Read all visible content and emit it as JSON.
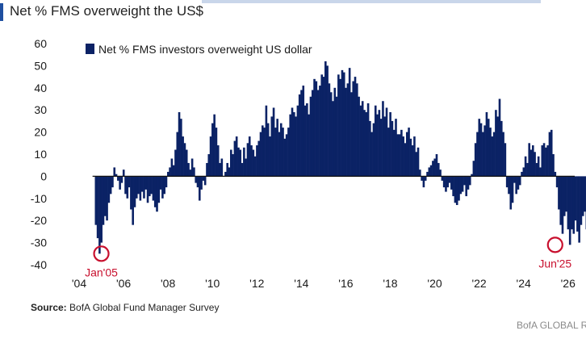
{
  "header": {
    "title": "Net % FMS overweight the US$"
  },
  "chart_data": {
    "type": "bar",
    "title": "Net % FMS overweight the US$",
    "legend": "Net % FMS investors overweight US dollar",
    "legend_position": "top-left",
    "ylim": [
      -40,
      60
    ],
    "y_ticks": [
      60,
      50,
      40,
      30,
      20,
      10,
      0,
      -10,
      -20,
      -30,
      -40
    ],
    "x_ticks": [
      "'04",
      "'06",
      "'08",
      "'10",
      "'12",
      "'14",
      "'16",
      "'18",
      "'20",
      "'22",
      "'24",
      "'26"
    ],
    "x_tick_years": [
      2004,
      2006,
      2008,
      2010,
      2012,
      2014,
      2016,
      2018,
      2020,
      2022,
      2024,
      2026
    ],
    "xlim": [
      2004.0,
      2026.3
    ],
    "bar_color": "#0b2265",
    "annotations": [
      {
        "label": "Jan'05",
        "x": 2005.0,
        "y": -35,
        "color": "#c8102e"
      },
      {
        "label": "Jun'25",
        "x": 2025.42,
        "y": -31,
        "color": "#c8102e"
      }
    ],
    "series": [
      {
        "name": "Net % FMS investors overweight US dollar",
        "start": 2004.75,
        "step_months": 1,
        "values": [
          -22,
          -28,
          -35,
          -30,
          -22,
          -18,
          -20,
          -12,
          -8,
          -5,
          4,
          1,
          -2,
          -6,
          -3,
          3,
          -8,
          -10,
          -5,
          -15,
          -22,
          -14,
          -10,
          -8,
          -11,
          -7,
          -10,
          -6,
          -12,
          -9,
          -8,
          -11,
          -14,
          -16,
          -12,
          -6,
          -10,
          -8,
          -5,
          2,
          4,
          8,
          5,
          12,
          20,
          29,
          26,
          18,
          15,
          12,
          6,
          3,
          8,
          4,
          -3,
          -5,
          -11,
          -6,
          -2,
          -4,
          6,
          10,
          18,
          24,
          28,
          22,
          14,
          6,
          8,
          0,
          2,
          6,
          4,
          12,
          10,
          16,
          18,
          13,
          12,
          6,
          13,
          8,
          15,
          18,
          14,
          12,
          9,
          14,
          16,
          20,
          23,
          22,
          32,
          24,
          18,
          27,
          31,
          22,
          26,
          20,
          24,
          22,
          17,
          19,
          22,
          28,
          31,
          29,
          27,
          32,
          37,
          39,
          41,
          32,
          33,
          28,
          36,
          39,
          44,
          43,
          39,
          41,
          46,
          45,
          52,
          50,
          42,
          38,
          34,
          40,
          36,
          46,
          44,
          48,
          47,
          40,
          42,
          49,
          38,
          43,
          45,
          42,
          36,
          32,
          34,
          30,
          29,
          33,
          25,
          20,
          24,
          32,
          28,
          30,
          26,
          34,
          27,
          31,
          22,
          29,
          25,
          21,
          26,
          19,
          19,
          21,
          18,
          15,
          20,
          22,
          17,
          14,
          18,
          11,
          13,
          3,
          -2,
          -5,
          -2,
          2,
          4,
          5,
          7,
          8,
          10,
          6,
          3,
          -2,
          -5,
          -7,
          -5,
          -3,
          -6,
          -9,
          -12,
          -13,
          -11,
          -8,
          -7,
          -4,
          -9,
          -6,
          -4,
          1,
          7,
          15,
          20,
          26,
          24,
          20,
          23,
          29,
          26,
          22,
          18,
          20,
          30,
          27,
          35,
          25,
          20,
          15,
          -5,
          -8,
          -15,
          -12,
          -3,
          -8,
          -6,
          -4,
          2,
          4,
          9,
          6,
          15,
          12,
          14,
          11,
          6,
          9,
          4,
          14,
          15,
          13,
          14,
          20,
          21,
          10,
          2,
          -5,
          -15,
          -22,
          -26,
          -18,
          -16,
          -24,
          -31,
          -24,
          -26,
          -20,
          -25,
          -30,
          -22,
          -18,
          -16,
          -24,
          -22,
          -13,
          -15
        ]
      }
    ]
  },
  "source": {
    "label": "Source:",
    "text": "BofA Global Fund Manager Survey"
  },
  "footer": {
    "brand": "BofA GLOBAL RE"
  }
}
